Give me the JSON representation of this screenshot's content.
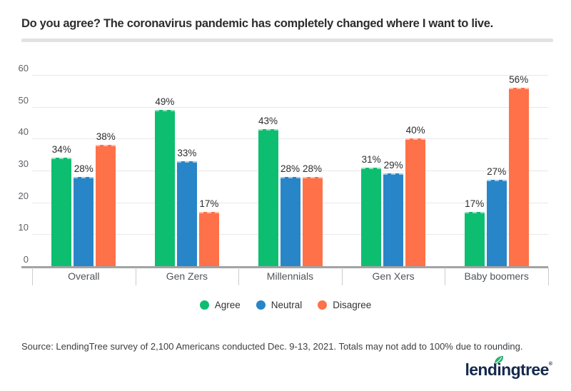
{
  "title": "Do you agree? The coronavirus pandemic has completely changed where I want to live.",
  "chart_data": {
    "type": "bar",
    "title": "Do you agree? The coronavirus pandemic has completely changed where I want to live.",
    "categories": [
      "Overall",
      "Gen Zers",
      "Millennials",
      "Gen Xers",
      "Baby boomers"
    ],
    "series": [
      {
        "name": "Agree",
        "color": "#0dbe70",
        "values": [
          34,
          49,
          43,
          31,
          17
        ]
      },
      {
        "name": "Neutral",
        "color": "#2885c7",
        "values": [
          28,
          33,
          28,
          29,
          27
        ]
      },
      {
        "name": "Disagree",
        "color": "#ff7149",
        "values": [
          38,
          17,
          28,
          40,
          56
        ]
      }
    ],
    "value_suffix": "%",
    "xlabel": "",
    "ylabel": "",
    "ylim": [
      0,
      60
    ],
    "yticks": [
      0,
      10,
      20,
      30,
      40,
      50,
      60
    ],
    "grid": true,
    "legend_position": "bottom"
  },
  "source_note": "Source: LendingTree survey of 2,100 Americans conducted Dec. 9-13, 2021. Totals may not add to 100% due to rounding.",
  "logo": {
    "text": "lendingtree",
    "registered_mark": "®",
    "text_color": "#16294d",
    "leaf_color": "#2ab573"
  }
}
